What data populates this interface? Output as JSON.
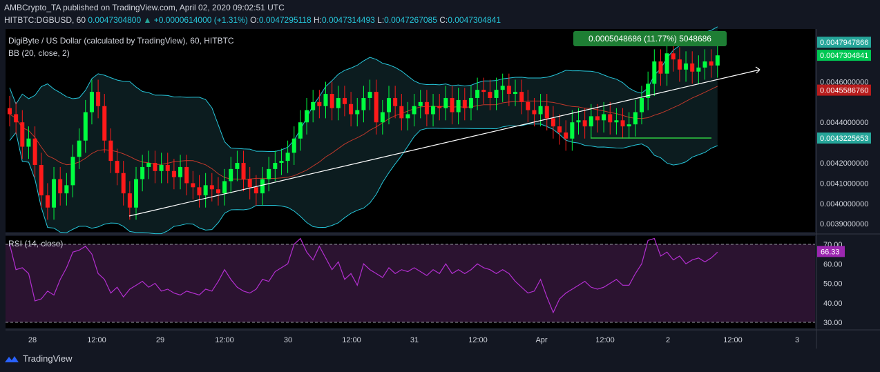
{
  "header": {
    "publisher": "AMBCrypto_TA published on TradingView.com, April 02, 2020 09:02:51 UTC",
    "symbol": "HITBTC:DGBUSD, 60",
    "last": "0.0047304800",
    "change": "+0.0000614000 (+1.31%)",
    "o_label": "O:",
    "o": "0.0047295118",
    "h_label": "H:",
    "h": "0.0047314493",
    "l_label": "L:",
    "l": "0.0047267085",
    "c_label": "C:",
    "c": "0.0047304841"
  },
  "legend": {
    "pair": "DigiByte / US Dollar (calculated by TradingView), 60, HITBTC",
    "bb": "BB (20, close, 2)",
    "rsi": "RSI (14, close)"
  },
  "measure_label": "0.0005048686 (11.77%) 5048686",
  "colors": {
    "background": "#131722",
    "up": "#00ff40",
    "down": "#ff1a1a",
    "bb_band": "#26c6da",
    "bb_basis": "#c0392b",
    "rsi_line": "#b32fd0",
    "rsi_fill": "#2b1330",
    "trendline": "#ffffff",
    "measure": "#1e7e34"
  },
  "price_labels": [
    {
      "text": "0.0047947866",
      "bg": "#26a69a"
    },
    {
      "text": "0.0047304841",
      "bg": "#00c853"
    },
    {
      "text": "0.0045586760",
      "bg": "#b71c1c"
    },
    {
      "text": "0.0043225653",
      "bg": "#26a69a"
    }
  ],
  "chart_data": {
    "type": "candlestick",
    "title": "DigiByte / US Dollar (calculated by TradingView), 60, HITBTC",
    "y_ticks": [
      "0.0046000000",
      "0.0044000000",
      "0.0042000000",
      "0.0041000000",
      "0.0040000000",
      "0.0039000000"
    ],
    "y_tick_values": [
      0.0046,
      0.0044,
      0.0042,
      0.0041,
      0.004,
      0.0039
    ],
    "ylim": [
      0.00386,
      0.00486
    ],
    "x_ticks": [
      "28",
      "12:00",
      "29",
      "12:00",
      "30",
      "12:00",
      "31",
      "12:00",
      "Apr",
      "12:00",
      "2",
      "12:00",
      "3"
    ],
    "close": [
      0.00444,
      0.0044,
      0.00428,
      0.00432,
      0.00419,
      0.00404,
      0.00398,
      0.00412,
      0.00405,
      0.00409,
      0.00423,
      0.00431,
      0.00445,
      0.00455,
      0.00448,
      0.00431,
      0.00421,
      0.00415,
      0.00405,
      0.00398,
      0.00412,
      0.00418,
      0.0042,
      0.00416,
      0.00419,
      0.00416,
      0.00413,
      0.00418,
      0.0041,
      0.00408,
      0.00404,
      0.00409,
      0.00407,
      0.00405,
      0.00411,
      0.00417,
      0.0042,
      0.00412,
      0.00408,
      0.00405,
      0.00412,
      0.00417,
      0.0042,
      0.00421,
      0.00425,
      0.00432,
      0.0044,
      0.00446,
      0.0045,
      0.00448,
      0.00454,
      0.00447,
      0.00452,
      0.00449,
      0.00444,
      0.00446,
      0.00452,
      0.00455,
      0.0044,
      0.00445,
      0.00452,
      0.00448,
      0.00442,
      0.00444,
      0.00448,
      0.0045,
      0.00444,
      0.00448,
      0.00447,
      0.00452,
      0.00445,
      0.00451,
      0.00447,
      0.00452,
      0.00456,
      0.00455,
      0.00452,
      0.00456,
      0.00458,
      0.00454,
      0.00455,
      0.0045,
      0.00446,
      0.00444,
      0.00448,
      0.00442,
      0.00438,
      0.00435,
      0.00432,
      0.0044,
      0.00441,
      0.00438,
      0.00443,
      0.00441,
      0.00444,
      0.0044,
      0.00441,
      0.00438,
      0.00439,
      0.00445,
      0.00452,
      0.00459,
      0.0047,
      0.00464,
      0.00474,
      0.00471,
      0.00466,
      0.00469,
      0.00465,
      0.00467,
      0.0047,
      0.00468,
      0.00473
    ],
    "open": [
      0.00447,
      0.00444,
      0.0044,
      0.00428,
      0.00432,
      0.00419,
      0.00404,
      0.00398,
      0.00412,
      0.00405,
      0.00409,
      0.00423,
      0.00431,
      0.00445,
      0.00455,
      0.00448,
      0.00431,
      0.00421,
      0.00415,
      0.00405,
      0.00398,
      0.00412,
      0.00418,
      0.0042,
      0.00416,
      0.00419,
      0.00416,
      0.00413,
      0.00418,
      0.0041,
      0.00408,
      0.00404,
      0.00409,
      0.00407,
      0.00405,
      0.00411,
      0.00417,
      0.0042,
      0.00412,
      0.00408,
      0.00405,
      0.00412,
      0.00417,
      0.0042,
      0.00421,
      0.00425,
      0.00432,
      0.0044,
      0.00446,
      0.0045,
      0.00448,
      0.00454,
      0.00447,
      0.00452,
      0.00449,
      0.00444,
      0.00446,
      0.00452,
      0.00455,
      0.0044,
      0.00445,
      0.00452,
      0.00448,
      0.00442,
      0.00444,
      0.00448,
      0.0045,
      0.00444,
      0.00448,
      0.00447,
      0.00452,
      0.00445,
      0.00451,
      0.00447,
      0.00452,
      0.00456,
      0.00455,
      0.00452,
      0.00456,
      0.00458,
      0.00454,
      0.00455,
      0.0045,
      0.00446,
      0.00444,
      0.00448,
      0.00442,
      0.00438,
      0.00435,
      0.00432,
      0.0044,
      0.00441,
      0.00438,
      0.00443,
      0.00441,
      0.00444,
      0.0044,
      0.00441,
      0.00438,
      0.00439,
      0.00445,
      0.00452,
      0.00459,
      0.0047,
      0.00464,
      0.00474,
      0.00471,
      0.00466,
      0.00469,
      0.00465,
      0.00467,
      0.0047,
      0.00468
    ],
    "rsi_ticks": [
      "70.00",
      "60.00",
      "50.00",
      "40.00",
      "30.00"
    ],
    "rsi_tick_values": [
      70,
      60,
      50,
      40,
      30
    ],
    "rsi_current": "66.33",
    "rsi": [
      70,
      57,
      58,
      55,
      41,
      42,
      46,
      44,
      52,
      58,
      66,
      67,
      69,
      65,
      55,
      52,
      45,
      48,
      43,
      47,
      49,
      51,
      48,
      50,
      46,
      47,
      45,
      44,
      46,
      45,
      44,
      47,
      46,
      51,
      57,
      52,
      48,
      46,
      45,
      47,
      52,
      51,
      56,
      58,
      60,
      70,
      73,
      66,
      62,
      69,
      63,
      57,
      61,
      52,
      55,
      49,
      60,
      57,
      55,
      53,
      58,
      55,
      57,
      56,
      58,
      56,
      54,
      57,
      55,
      60,
      55,
      57,
      55,
      57,
      60,
      58,
      57,
      55,
      57,
      55,
      51,
      48,
      45,
      46,
      52,
      43,
      35,
      42,
      45,
      47,
      49,
      51,
      48,
      47,
      48,
      50,
      52,
      49,
      49,
      55,
      60,
      72,
      73,
      64,
      66,
      62,
      64,
      60,
      62,
      63,
      61,
      63,
      66
    ]
  },
  "footer": {
    "brand": "TradingView"
  }
}
